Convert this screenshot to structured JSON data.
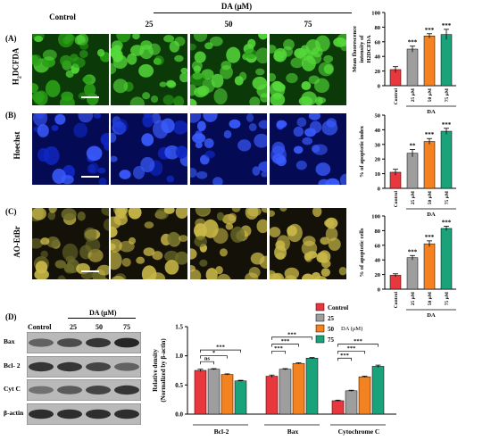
{
  "header": {
    "control": "Control",
    "da_group": "DA (μM)",
    "concentrations": [
      "25",
      "50",
      "75"
    ]
  },
  "rows": [
    {
      "panel": "(A)",
      "stain": "H2DCFDA",
      "stain_sub": "2",
      "stain_pre": "H",
      "stain_post": "DCFDA",
      "tint": [
        "#0b3a08",
        "#2aa117",
        "#55d93a"
      ]
    },
    {
      "panel": "(B)",
      "stain": "Hoechst",
      "tint": [
        "#050a55",
        "#1028c8",
        "#3a5cff"
      ]
    },
    {
      "panel": "(C)",
      "stain": "AO-EtBr",
      "tint": [
        "#141208",
        "#6a6a28",
        "#c9b848"
      ]
    }
  ],
  "colors": {
    "control": "#e8383d",
    "c25": "#9e9e9e",
    "c50": "#f58220",
    "c75": "#1aa37a"
  },
  "chart_data": [
    {
      "type": "bar",
      "ylabel": "Mean fluorescence intensity of H2DCFDA",
      "ylabel_lines": [
        "Mean fluorescence",
        "intensity of",
        "H2DCFDA"
      ],
      "categories": [
        "Control",
        "25 μM",
        "50 μM",
        "75 μM"
      ],
      "values": [
        22,
        50,
        68,
        70
      ],
      "errors": [
        4,
        4,
        3,
        7
      ],
      "significance": [
        "",
        "***",
        "***",
        "***"
      ],
      "ylim": [
        0,
        100
      ],
      "yticks": [
        0,
        20,
        40,
        60,
        80,
        100
      ],
      "group_label": "DA"
    },
    {
      "type": "bar",
      "ylabel": "% of apoptotic index",
      "ylabel_lines": [
        "% of apoptotic index"
      ],
      "categories": [
        "Control",
        "25 μM",
        "50 μM",
        "75 μM"
      ],
      "values": [
        11,
        24,
        32,
        39
      ],
      "errors": [
        2,
        2.5,
        2,
        2
      ],
      "significance": [
        "",
        "**",
        "***",
        "***"
      ],
      "ylim": [
        0,
        50
      ],
      "yticks": [
        0,
        10,
        20,
        30,
        40,
        50
      ],
      "group_label": "DA"
    },
    {
      "type": "bar",
      "ylabel": "% of apoptotic cells",
      "ylabel_lines": [
        "% of apoptotic cells"
      ],
      "categories": [
        "Control",
        "25 μM",
        "50 μM",
        "75 μM"
      ],
      "values": [
        19,
        43,
        62,
        83
      ],
      "errors": [
        2,
        3,
        4,
        3
      ],
      "significance": [
        "",
        "***",
        "***",
        "***"
      ],
      "ylim": [
        0,
        100
      ],
      "yticks": [
        0,
        20,
        40,
        60,
        80,
        100
      ],
      "group_label": "DA"
    },
    {
      "type": "bar",
      "ylabel": "Relative density (Normalized by β-actin)",
      "ylabel_lines": [
        "Relative density",
        "(Normalized by β-actin)"
      ],
      "groups": [
        "Bcl-2",
        "Bax",
        "Cytochrome C"
      ],
      "series": [
        {
          "name": "Control",
          "values": [
            0.75,
            0.65,
            0.23
          ]
        },
        {
          "name": "25",
          "values": [
            0.77,
            0.77,
            0.4
          ]
        },
        {
          "name": "50",
          "values": [
            0.68,
            0.87,
            0.64
          ]
        },
        {
          "name": "75",
          "values": [
            0.57,
            0.96,
            0.82
          ]
        }
      ],
      "errors": [
        [
          0.02,
          0.02,
          0.01
        ],
        [
          0.01,
          0.01,
          0.01
        ],
        [
          0.01,
          0.01,
          0.01
        ],
        [
          0.01,
          0.01,
          0.02
        ]
      ],
      "ylim": [
        0,
        1.5
      ],
      "yticks": [
        "0.0",
        "0.5",
        "1.0",
        "1.5"
      ],
      "legend_title": "DA (μM)",
      "legend_placement": "top-right",
      "significance_labels": {
        "bcl2": [
          "ns",
          "*",
          "***"
        ],
        "bax": [
          "***",
          "***",
          "***"
        ],
        "cytc": [
          "***",
          "***",
          "***"
        ]
      }
    }
  ],
  "western": {
    "panel": "(D)",
    "header": "DA (μM)",
    "lanes": [
      "Control",
      "25",
      "50",
      "75"
    ],
    "proteins": [
      "Bax",
      "Bcl- 2",
      "Cyt C",
      "β-actin"
    ],
    "intensity": [
      [
        0.55,
        0.7,
        0.85,
        0.95
      ],
      [
        0.85,
        0.85,
        0.75,
        0.55
      ],
      [
        0.45,
        0.6,
        0.75,
        0.85
      ],
      [
        0.9,
        0.9,
        0.9,
        0.9
      ]
    ]
  }
}
